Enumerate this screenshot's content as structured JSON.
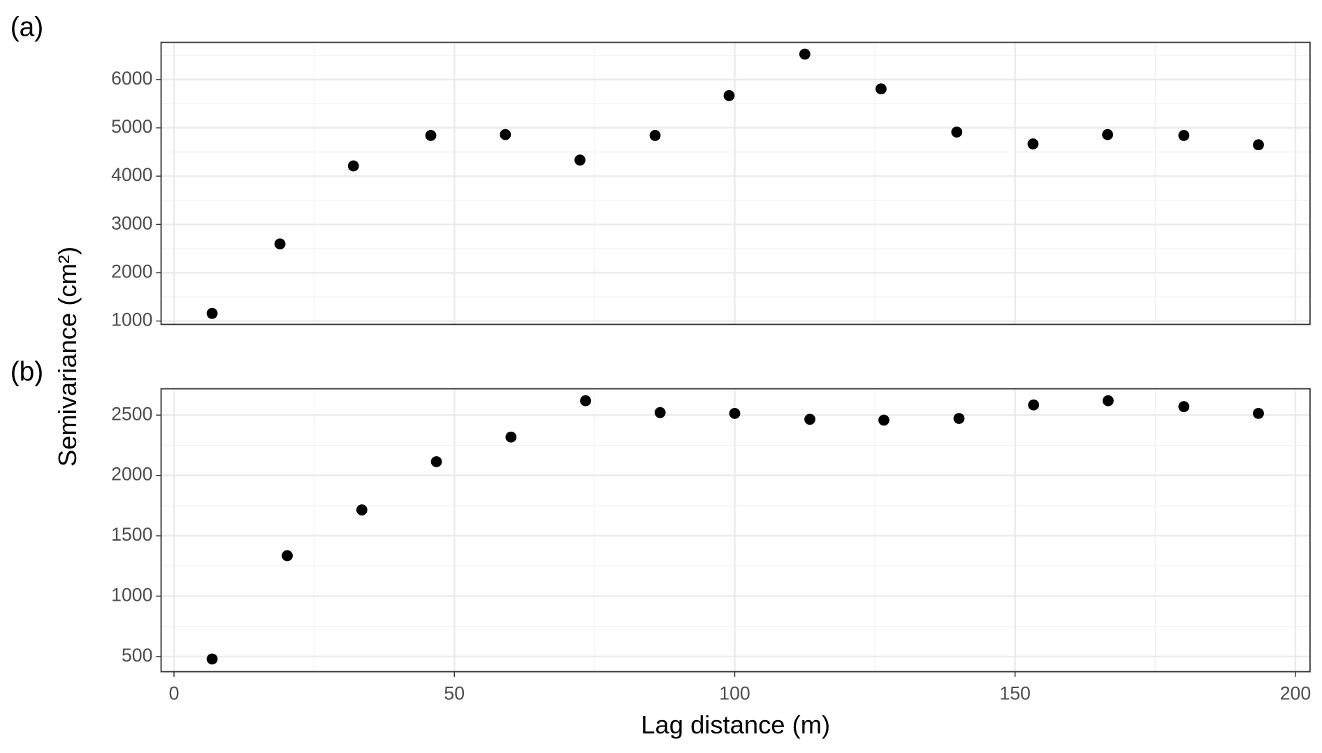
{
  "y_label": "Semivariance (cm²)",
  "chart_data": [
    {
      "type": "scatter",
      "panel_label": "(a)",
      "color": "#000000",
      "grid": true,
      "show_x_tick_labels": false,
      "x": [
        6.8,
        18.9,
        32.0,
        45.8,
        59.1,
        72.4,
        85.8,
        99.0,
        112.5,
        126.1,
        139.6,
        153.2,
        166.5,
        180.1,
        193.4
      ],
      "values": [
        1158,
        2596,
        4211,
        4842,
        4860,
        4333,
        4842,
        5667,
        6526,
        5807,
        4912,
        4667,
        4860,
        4842,
        4649
      ],
      "xlim": [
        -2.3,
        202.6
      ],
      "xticks": [
        0,
        50,
        100,
        150,
        200
      ],
      "x_minor_ticks": [
        25,
        75,
        125,
        175
      ],
      "ylim": [
        930,
        6770
      ],
      "yticks": [
        1000,
        2000,
        3000,
        4000,
        5000,
        6000
      ],
      "y_minor_ticks": [
        1500,
        2500,
        3500,
        4500,
        5500,
        6500
      ]
    },
    {
      "type": "scatter",
      "panel_label": "(b)",
      "color": "#000000",
      "grid": true,
      "show_x_tick_labels": true,
      "x_label": "Lag distance (m)",
      "x": [
        6.8,
        20.2,
        33.5,
        46.8,
        60.1,
        73.4,
        86.7,
        100.0,
        113.4,
        126.6,
        140.0,
        153.3,
        166.6,
        180.1,
        193.4
      ],
      "values": [
        479,
        1335,
        1714,
        2114,
        2318,
        2619,
        2521,
        2514,
        2465,
        2458,
        2472,
        2584,
        2619,
        2570,
        2514
      ],
      "xlim": [
        -2.3,
        202.6
      ],
      "xticks": [
        0,
        50,
        100,
        150,
        200
      ],
      "x_minor_ticks": [
        25,
        75,
        125,
        175
      ],
      "ylim": [
        374,
        2718
      ],
      "yticks": [
        500,
        1000,
        1500,
        2000,
        2500
      ],
      "y_minor_ticks": [
        750,
        1250,
        1750,
        2250
      ]
    }
  ]
}
